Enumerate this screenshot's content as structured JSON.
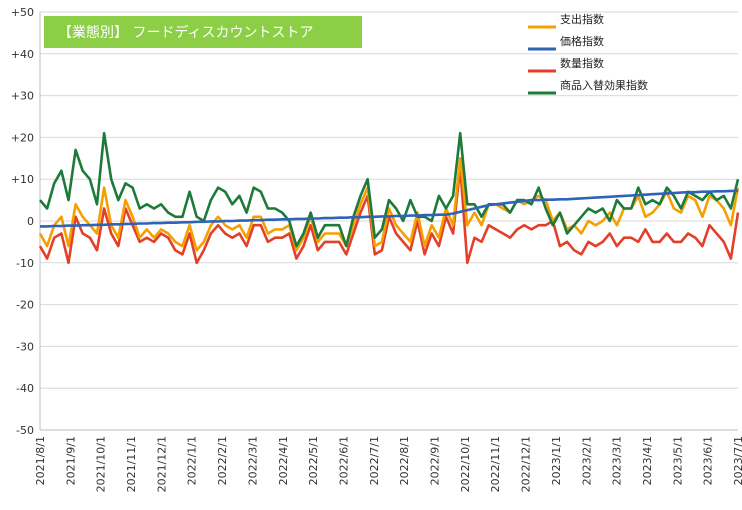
{
  "chart_data": {
    "type": "line",
    "title": "【業態別】 フードディスカウントストア",
    "xlabel": "",
    "ylabel": "",
    "ylim": [
      -50,
      50
    ],
    "y_ticks": [
      "-50",
      "-40",
      "-30",
      "-20",
      "-10",
      "0",
      "+10",
      "+20",
      "+30",
      "+40",
      "+50"
    ],
    "grid": true,
    "legend_position": "top-right",
    "x_tick_labels": [
      "2021/8/1",
      "2021/9/1",
      "2021/10/1",
      "2021/11/1",
      "2021/12/1",
      "2022/1/1",
      "2022/2/1",
      "2022/3/1",
      "2022/4/1",
      "2022/5/1",
      "2022/6/1",
      "2022/7/1",
      "2022/8/1",
      "2022/9/1",
      "2022/10/1",
      "2022/11/1",
      "2022/12/1",
      "2023/1/1",
      "2023/2/1",
      "2023/3/1",
      "2023/4/1",
      "2023/5/1",
      "2023/6/1",
      "2023/7/1"
    ],
    "series": [
      {
        "name": "支出指数",
        "color": "#f5a000",
        "values": [
          -3,
          -6,
          -1,
          1,
          -6,
          4,
          1,
          -1,
          -3,
          8,
          -1,
          -4,
          5,
          1,
          -4,
          -2,
          -4,
          -2,
          -3,
          -5,
          -6,
          -1,
          -7,
          -5,
          -1,
          1,
          -1,
          -2,
          -1,
          -4,
          1,
          1,
          -3,
          -2,
          -2,
          -1,
          -7,
          -4,
          1,
          -5,
          -3,
          -3,
          -3,
          -6,
          -1,
          4,
          8,
          -6,
          -5,
          3,
          -1,
          -3,
          -5,
          2,
          -6,
          -1,
          -4,
          3,
          -1,
          15,
          -1,
          2,
          -1,
          4,
          4,
          3,
          2,
          5,
          4,
          5,
          6,
          5,
          0,
          2,
          -2,
          -1,
          -3,
          0,
          -1,
          0,
          2,
          -1,
          3,
          3,
          6,
          1,
          2,
          4,
          7,
          3,
          2,
          6,
          5,
          1,
          6,
          5,
          3,
          -1,
          8
        ]
      },
      {
        "name": "価格指数",
        "color": "#2f63b8",
        "values": [
          -1.3,
          -1.3,
          -1.2,
          -1.2,
          -1.1,
          -1.1,
          -1.0,
          -1.0,
          -0.9,
          -0.9,
          -0.8,
          -0.8,
          -0.7,
          -0.7,
          -0.6,
          -0.6,
          -0.5,
          -0.5,
          -0.4,
          -0.4,
          -0.3,
          -0.3,
          -0.2,
          -0.2,
          -0.1,
          -0.1,
          0.0,
          0.0,
          0.1,
          0.1,
          0.2,
          0.2,
          0.3,
          0.3,
          0.4,
          0.4,
          0.5,
          0.5,
          0.6,
          0.6,
          0.7,
          0.7,
          0.8,
          0.8,
          0.9,
          0.9,
          1.0,
          1.0,
          1.1,
          1.1,
          1.2,
          1.2,
          1.3,
          1.3,
          1.4,
          1.4,
          1.5,
          1.5,
          1.8,
          2.2,
          2.6,
          3.0,
          3.4,
          3.8,
          4.0,
          4.2,
          4.4,
          4.6,
          4.8,
          5.0,
          5.0,
          5.1,
          5.1,
          5.2,
          5.2,
          5.3,
          5.4,
          5.5,
          5.6,
          5.7,
          5.8,
          5.9,
          6.0,
          6.1,
          6.2,
          6.3,
          6.4,
          6.5,
          6.6,
          6.7,
          6.8,
          6.9,
          6.9,
          7.0,
          7.0,
          7.1,
          7.1,
          7.2,
          7.2
        ]
      },
      {
        "name": "数量指数",
        "color": "#e3402a",
        "values": [
          -6,
          -9,
          -4,
          -3,
          -10,
          1,
          -3,
          -4,
          -7,
          3,
          -3,
          -6,
          3,
          -1,
          -5,
          -4,
          -5,
          -3,
          -4,
          -7,
          -8,
          -3,
          -10,
          -7,
          -3,
          -1,
          -3,
          -4,
          -3,
          -6,
          -1,
          -1,
          -5,
          -4,
          -4,
          -3,
          -9,
          -6,
          -1,
          -7,
          -5,
          -5,
          -5,
          -8,
          -3,
          2,
          6,
          -8,
          -7,
          1,
          -3,
          -5,
          -7,
          0,
          -8,
          -3,
          -6,
          1,
          -3,
          13,
          -10,
          -4,
          -5,
          -1,
          -2,
          -3,
          -4,
          -2,
          -1,
          -2,
          -1,
          -1,
          0,
          -6,
          -5,
          -7,
          -8,
          -5,
          -6,
          -5,
          -3,
          -6,
          -4,
          -4,
          -5,
          -2,
          -5,
          -5,
          -3,
          -5,
          -5,
          -3,
          -4,
          -6,
          -1,
          -3,
          -5,
          -9,
          2
        ]
      },
      {
        "name": "商品入替効果指数",
        "color": "#1e7a3a",
        "values": [
          5,
          3,
          9,
          12,
          5,
          17,
          12,
          10,
          4,
          21,
          10,
          5,
          9,
          8,
          3,
          4,
          3,
          4,
          2,
          1,
          1,
          7,
          1,
          0,
          5,
          8,
          7,
          4,
          6,
          2,
          8,
          7,
          3,
          3,
          2,
          0,
          -6,
          -3,
          2,
          -4,
          -1,
          -1,
          -1,
          -6,
          1,
          6,
          10,
          -4,
          -2,
          5,
          3,
          0,
          5,
          1,
          1,
          0,
          6,
          3,
          6,
          21,
          4,
          4,
          1,
          4,
          4,
          4,
          2,
          5,
          5,
          4,
          8,
          3,
          -1,
          2,
          -3,
          -1,
          1,
          3,
          2,
          3,
          0,
          5,
          3,
          3,
          8,
          4,
          5,
          4,
          8,
          6,
          3,
          7,
          6,
          5,
          7,
          5,
          6,
          3,
          10
        ]
      }
    ]
  }
}
